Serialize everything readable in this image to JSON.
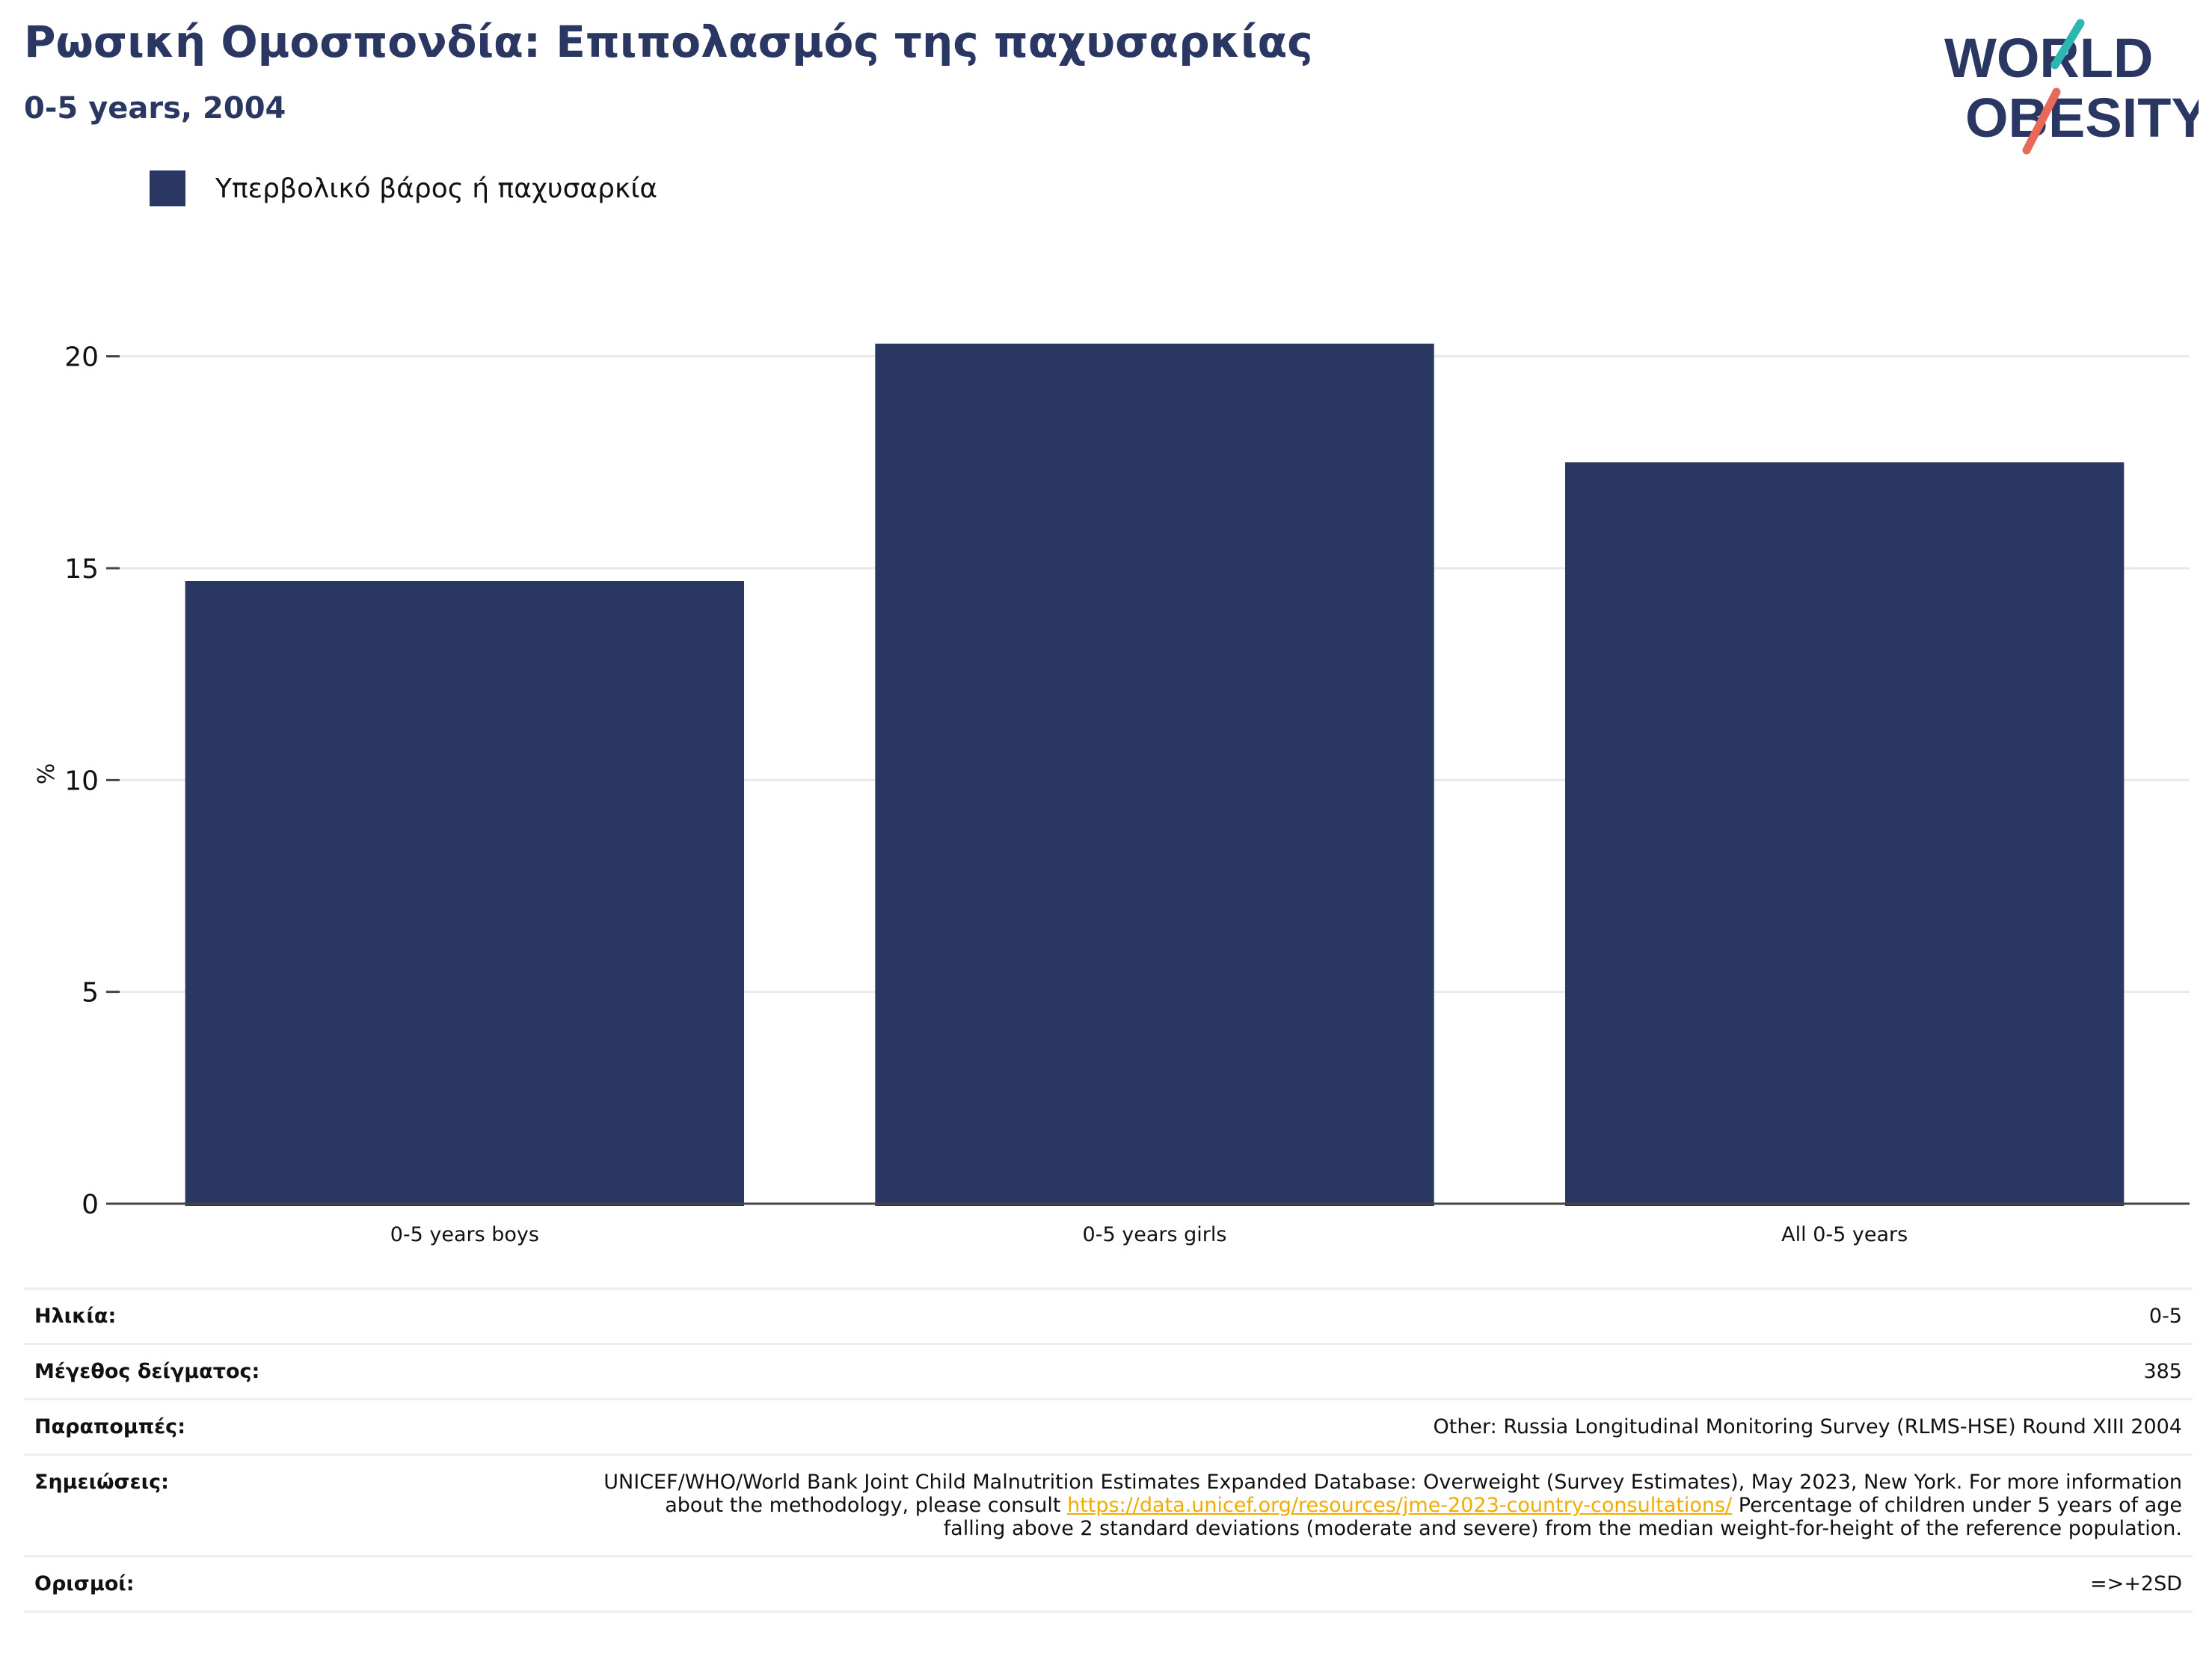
{
  "title": "Ρωσική Ομοσπονδία: Επιπολασμός της παχυσαρκίας",
  "subtitle": "0-5 years, 2004",
  "logo": {
    "line1": "WORLD",
    "line2": "OBESITY"
  },
  "legend": {
    "label": "Υπερβολικό βάρος ή παχυσαρκία"
  },
  "colors": {
    "bar": "#2a3763",
    "title": "#2a3763",
    "grid": "#e8e8ee",
    "link": "#f2ab00",
    "logo_teal": "#2bb6b0",
    "logo_coral": "#e8685a"
  },
  "chart_data": {
    "type": "bar",
    "categories": [
      "0-5 years boys",
      "0-5 years girls",
      "All 0-5 years"
    ],
    "series": [
      {
        "name": "Υπερβολικό βάρος ή παχυσαρκία",
        "values": [
          14.7,
          20.3,
          17.5
        ]
      }
    ],
    "ylabel": "%",
    "ylim": [
      0,
      21
    ],
    "yticks": [
      0,
      5,
      10,
      15,
      20
    ],
    "grid": true,
    "legend_position": "top-left"
  },
  "info": {
    "age_label": "Ηλικία:",
    "age_value": "0-5",
    "sample_label": "Μέγεθος δείγματος:",
    "sample_value": "385",
    "refs_label": "Παραπομπές:",
    "refs_value": "Other: Russia Longitudinal Monitoring Survey (RLMS-HSE) Round XIII 2004",
    "notes_label": "Σημειώσεις:",
    "notes_before": "UNICEF/WHO/World Bank Joint Child Malnutrition Estimates Expanded Database: Overweight (Survey Estimates), May 2023, New York. For more information about the methodology, please consult ",
    "notes_link": "https://data.unicef.org/resources/jme-2023-country-consultations/",
    "notes_after": " Percentage of children under 5 years of age falling above 2 standard deviations (moderate and severe) from the median weight-for-height of the reference population.",
    "defs_label": "Ορισμοί:",
    "defs_value": "=>+2SD"
  }
}
